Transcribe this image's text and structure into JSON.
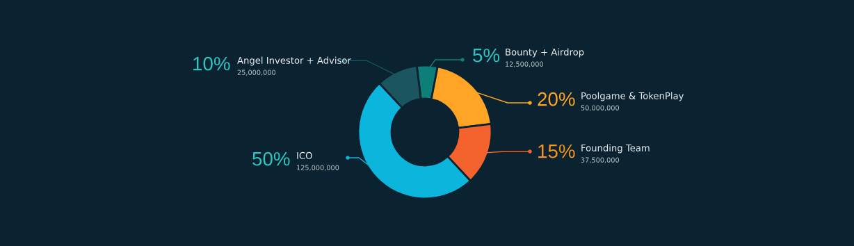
{
  "chart_data": {
    "type": "donut",
    "categories": [
      "Bounty + Airdrop",
      "Poolgame & TokenPlay",
      "Founding Team",
      "ICO",
      "Angel Investor + Advisor"
    ],
    "values": [
      5,
      20,
      15,
      50,
      10
    ],
    "value_labels": [
      "5%",
      "20%",
      "15%",
      "50%",
      "10%"
    ],
    "colors": [
      "#0e7f78",
      "#ffa424",
      "#f4622e",
      "#0bb5dc",
      "#1a5560"
    ],
    "annotations": [
      "12,500,000",
      "50,000,000",
      "37,500,000",
      "125,000,000",
      "25,000,000"
    ],
    "legend": false
  }
}
